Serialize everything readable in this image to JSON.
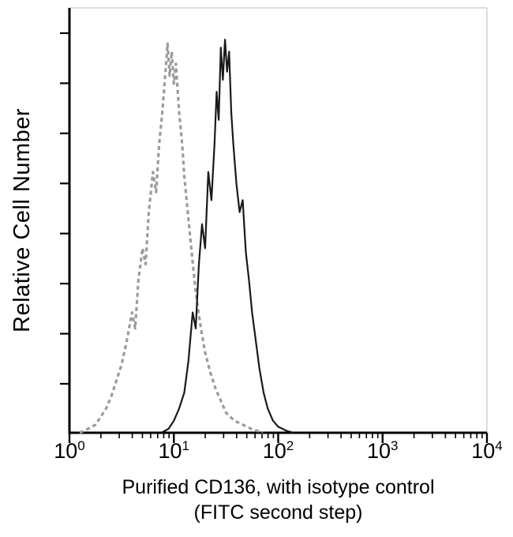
{
  "chart_data": {
    "type": "line",
    "subtype": "flow-cytometry-histogram",
    "title": "",
    "ylabel": "Relative Cell Number",
    "xlabel": "Purified CD136, with isotype control (FITC second step)",
    "xlabel_lines": [
      "Purified CD136, with isotype control",
      "(FITC second step)"
    ],
    "x_scale": "log10",
    "x_range_log": [
      0,
      4
    ],
    "x_tick_base": "10",
    "x_tick_exponents": [
      "0",
      "1",
      "2",
      "3",
      "4"
    ],
    "x_minor_ticks_per_decade": [
      2,
      3,
      4,
      5,
      6,
      7,
      8,
      9
    ],
    "y_axis": {
      "label_visible_values": false,
      "tick_count": 8,
      "range": [
        0,
        1
      ]
    },
    "grid": false,
    "legend": "none",
    "background": "#ffffff",
    "axis_color": "#000000",
    "frame_color": "#bbbbbb",
    "series": [
      {
        "name": "Isotype control (FITC second step)",
        "style": "dashed",
        "color": "#9b9b9b",
        "stroke_width": 3.2,
        "dash": "5 4",
        "points_logx_y": [
          [
            0.1,
            0.0
          ],
          [
            0.18,
            0.01
          ],
          [
            0.25,
            0.02
          ],
          [
            0.3,
            0.04
          ],
          [
            0.35,
            0.06
          ],
          [
            0.4,
            0.09
          ],
          [
            0.45,
            0.13
          ],
          [
            0.5,
            0.17
          ],
          [
            0.55,
            0.23
          ],
          [
            0.6,
            0.3
          ],
          [
            0.63,
            0.26
          ],
          [
            0.66,
            0.38
          ],
          [
            0.7,
            0.46
          ],
          [
            0.73,
            0.42
          ],
          [
            0.76,
            0.55
          ],
          [
            0.8,
            0.65
          ],
          [
            0.83,
            0.6
          ],
          [
            0.86,
            0.72
          ],
          [
            0.89,
            0.8
          ],
          [
            0.92,
            0.9
          ],
          [
            0.94,
            0.97
          ],
          [
            0.96,
            0.89
          ],
          [
            0.98,
            0.95
          ],
          [
            1.0,
            0.87
          ],
          [
            1.02,
            0.92
          ],
          [
            1.05,
            0.8
          ],
          [
            1.08,
            0.72
          ],
          [
            1.1,
            0.64
          ],
          [
            1.13,
            0.56
          ],
          [
            1.16,
            0.48
          ],
          [
            1.19,
            0.4
          ],
          [
            1.22,
            0.33
          ],
          [
            1.26,
            0.26
          ],
          [
            1.3,
            0.2
          ],
          [
            1.35,
            0.15
          ],
          [
            1.4,
            0.11
          ],
          [
            1.45,
            0.08
          ],
          [
            1.5,
            0.05
          ],
          [
            1.58,
            0.03
          ],
          [
            1.66,
            0.02
          ],
          [
            1.74,
            0.01
          ],
          [
            1.85,
            0.0
          ]
        ]
      },
      {
        "name": "Purified CD136",
        "style": "solid",
        "color": "#1a1a1a",
        "stroke_width": 2.2,
        "dash": "",
        "points_logx_y": [
          [
            0.88,
            0.0
          ],
          [
            0.95,
            0.01
          ],
          [
            1.0,
            0.03
          ],
          [
            1.05,
            0.06
          ],
          [
            1.1,
            0.1
          ],
          [
            1.14,
            0.18
          ],
          [
            1.18,
            0.3
          ],
          [
            1.21,
            0.26
          ],
          [
            1.24,
            0.42
          ],
          [
            1.27,
            0.52
          ],
          [
            1.3,
            0.46
          ],
          [
            1.33,
            0.65
          ],
          [
            1.36,
            0.58
          ],
          [
            1.39,
            0.72
          ],
          [
            1.41,
            0.85
          ],
          [
            1.43,
            0.78
          ],
          [
            1.45,
            0.96
          ],
          [
            1.47,
            0.88
          ],
          [
            1.49,
            0.98
          ],
          [
            1.51,
            0.9
          ],
          [
            1.53,
            0.95
          ],
          [
            1.55,
            0.8
          ],
          [
            1.57,
            0.72
          ],
          [
            1.6,
            0.62
          ],
          [
            1.63,
            0.55
          ],
          [
            1.66,
            0.58
          ],
          [
            1.69,
            0.45
          ],
          [
            1.72,
            0.38
          ],
          [
            1.75,
            0.3
          ],
          [
            1.78,
            0.24
          ],
          [
            1.82,
            0.16
          ],
          [
            1.86,
            0.1
          ],
          [
            1.9,
            0.06
          ],
          [
            1.95,
            0.03
          ],
          [
            2.0,
            0.015
          ],
          [
            2.08,
            0.005
          ],
          [
            2.15,
            0.0
          ]
        ]
      }
    ]
  }
}
